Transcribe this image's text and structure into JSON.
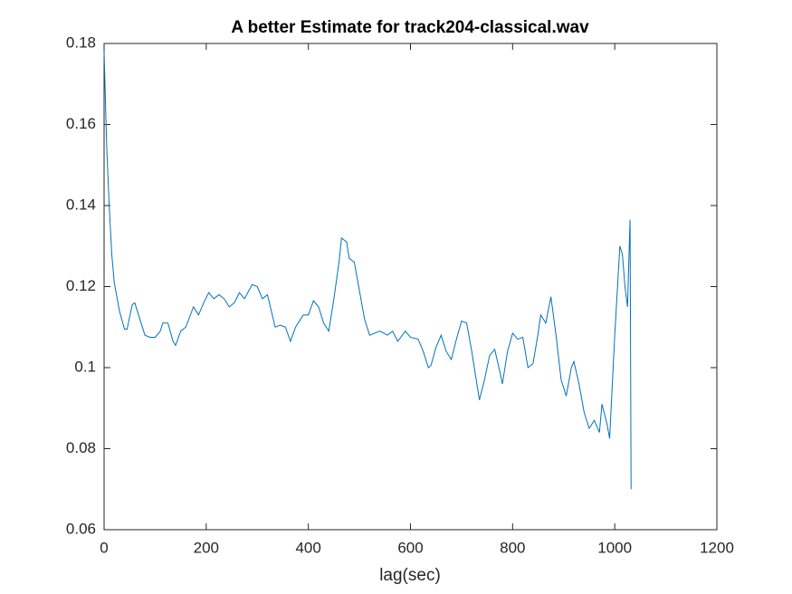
{
  "chart_data": {
    "type": "line",
    "title": "A better Estimate for track204-classical.wav",
    "x_label": "lag(sec)",
    "color": "#0072bd",
    "xlim": [
      0,
      1200
    ],
    "xticks": [
      0,
      200,
      400,
      600,
      800,
      1000,
      1200
    ],
    "ylim": [
      0.06,
      0.18
    ],
    "yticks": [
      0.06,
      0.08,
      0.1,
      0.12,
      0.14,
      0.16,
      0.18
    ],
    "x": [
      0,
      5,
      10,
      15,
      20,
      30,
      40,
      45,
      55,
      60,
      70,
      80,
      90,
      100,
      110,
      115,
      125,
      135,
      140,
      150,
      160,
      175,
      185,
      195,
      205,
      215,
      225,
      235,
      245,
      255,
      265,
      275,
      290,
      300,
      310,
      320,
      335,
      345,
      355,
      365,
      375,
      390,
      400,
      410,
      420,
      430,
      440,
      450,
      460,
      465,
      475,
      480,
      490,
      500,
      510,
      520,
      530,
      540,
      555,
      565,
      575,
      590,
      600,
      615,
      625,
      635,
      640,
      650,
      660,
      670,
      680,
      690,
      700,
      710,
      720,
      730,
      735,
      745,
      755,
      765,
      775,
      780,
      790,
      800,
      810,
      820,
      830,
      840,
      850,
      855,
      865,
      875,
      885,
      895,
      905,
      915,
      920,
      930,
      940,
      950,
      960,
      970,
      975,
      985,
      990,
      1000,
      1010,
      1015,
      1020,
      1025,
      1030,
      1032
    ],
    "values": [
      0.178,
      0.155,
      0.14,
      0.128,
      0.121,
      0.114,
      0.1095,
      0.1095,
      0.1155,
      0.116,
      0.112,
      0.108,
      0.1075,
      0.1075,
      0.109,
      0.111,
      0.111,
      0.1065,
      0.1055,
      0.109,
      0.11,
      0.115,
      0.113,
      0.116,
      0.1185,
      0.117,
      0.118,
      0.117,
      0.115,
      0.116,
      0.1185,
      0.117,
      0.1205,
      0.12,
      0.117,
      0.118,
      0.11,
      0.1105,
      0.11,
      0.1065,
      0.11,
      0.113,
      0.113,
      0.1165,
      0.115,
      0.111,
      0.109,
      0.117,
      0.126,
      0.132,
      0.131,
      0.127,
      0.126,
      0.119,
      0.112,
      0.108,
      0.1085,
      0.109,
      0.108,
      0.109,
      0.1065,
      0.109,
      0.1075,
      0.107,
      0.104,
      0.1,
      0.1005,
      0.105,
      0.108,
      0.104,
      0.102,
      0.107,
      0.1115,
      0.111,
      0.104,
      0.096,
      0.092,
      0.097,
      0.103,
      0.1045,
      0.099,
      0.096,
      0.104,
      0.1085,
      0.107,
      0.1075,
      0.1,
      0.101,
      0.1085,
      0.113,
      0.111,
      0.1175,
      0.108,
      0.097,
      0.093,
      0.1,
      0.1015,
      0.096,
      0.089,
      0.085,
      0.087,
      0.084,
      0.091,
      0.086,
      0.0825,
      0.108,
      0.13,
      0.128,
      0.12,
      0.115,
      0.1365,
      0.07
    ]
  }
}
